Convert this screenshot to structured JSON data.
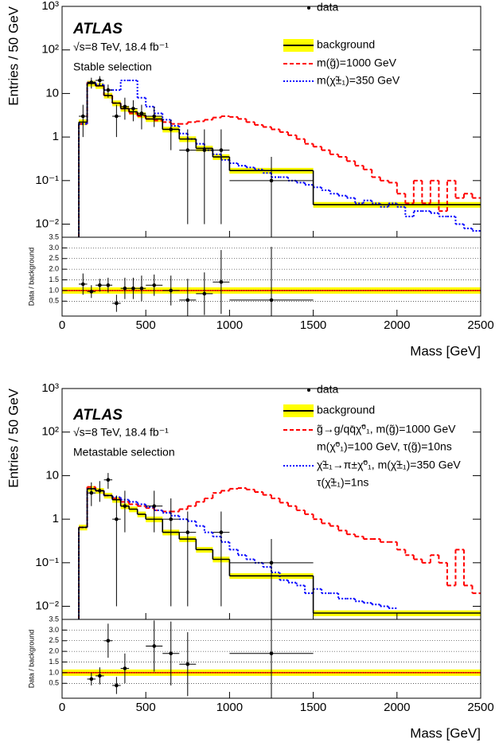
{
  "chart_data": [
    {
      "type": "histogram",
      "experiment": "ATLAS",
      "energy_label": "√s=8 TeV, 18.4 fb⁻¹",
      "selection": "Stable selection",
      "ylabel": "Entries / 50 GeV",
      "ratio_ylabel": "Data / background",
      "xlabel": "Mass [GeV]",
      "xlim": [
        0,
        2500
      ],
      "xticks": [
        0,
        500,
        1000,
        1500,
        2000,
        2500
      ],
      "ylim": [
        0.005,
        1000
      ],
      "log_y": true,
      "yticks": [
        {
          "value": 0.01,
          "label": "10⁻²"
        },
        {
          "value": 0.1,
          "label": "10⁻¹"
        },
        1,
        10,
        {
          "value": 100,
          "label": "10²"
        },
        {
          "value": 1000,
          "label": "10³"
        }
      ],
      "ratio_ylim": [
        -0.2,
        3.5
      ],
      "ratio_yticks": [
        0.5,
        {
          "value": 1,
          "label": "1.0"
        },
        1.5,
        {
          "value": 2,
          "label": "2.0"
        },
        2.5,
        {
          "value": 3,
          "label": "3.0"
        },
        3.5
      ],
      "ratio_grid": true,
      "data": {
        "name": "data",
        "color": "#000000",
        "x": [
          125,
          175,
          225,
          275,
          325,
          375,
          425,
          475,
          550,
          650,
          750,
          850,
          950,
          1250
        ],
        "xerr": [
          25,
          25,
          25,
          25,
          25,
          25,
          25,
          25,
          50,
          50,
          50,
          50,
          50,
          250
        ],
        "values": [
          3,
          18,
          20,
          12,
          3,
          5,
          4.5,
          3.5,
          3,
          1.5,
          0.5,
          0.5,
          0.5,
          0.1
        ],
        "err_low": [
          2,
          5,
          5,
          4,
          2,
          2.5,
          2.2,
          2,
          1.3,
          1,
          0.49,
          0.49,
          0.49,
          0.099
        ],
        "err_high": [
          2.5,
          5,
          5,
          4,
          2.5,
          3,
          2.5,
          2,
          2,
          1,
          1,
          1,
          1,
          0.25
        ]
      },
      "background": {
        "name": "background",
        "color": "#000000",
        "band_color": "#ffff00",
        "band_rel": 0.15,
        "bins": [
          100,
          150,
          200,
          250,
          300,
          350,
          400,
          450,
          500,
          600,
          700,
          800,
          900,
          1000,
          1500,
          2500
        ],
        "values": [
          2.2,
          17,
          15,
          9,
          6,
          4.5,
          3.8,
          3.2,
          2.6,
          1.5,
          0.9,
          0.55,
          0.35,
          0.17,
          0.028
        ]
      },
      "series": [
        {
          "name": "m(g̃)=1000 GeV",
          "color": "#ff0000",
          "dash": "5,3",
          "x_start": 100,
          "bin_width": 50,
          "values": [
            2,
            18,
            15,
            9,
            6,
            4.5,
            3.5,
            3,
            2.6,
            2.4,
            2.2,
            2,
            2,
            2.2,
            2.3,
            2.5,
            2.8,
            3,
            2.9,
            2.6,
            2.2,
            1.9,
            1.7,
            1.5,
            1.3,
            1.1,
            0.9,
            0.7,
            0.6,
            0.5,
            0.4,
            0.35,
            0.28,
            0.22,
            0.18,
            0.12,
            0.1,
            0.09,
            0.05,
            0.03,
            0.1,
            0.03,
            0.1,
            0.02,
            0.1,
            0.04,
            0.05,
            0.04
          ]
        },
        {
          "name": "m(χ̃±₁)=350 GeV",
          "color": "#0000ff",
          "dash": "2,2",
          "x_start": 100,
          "bin_width": 50,
          "values": [
            2,
            18,
            16,
            12,
            12,
            20,
            20,
            8,
            5,
            3.5,
            2.5,
            1.8,
            1.2,
            0.9,
            0.7,
            0.5,
            0.4,
            0.3,
            0.25,
            0.22,
            0.2,
            0.18,
            0.15,
            0.12,
            0.12,
            0.1,
            0.09,
            0.08,
            0.07,
            0.06,
            0.05,
            0.045,
            0.04,
            0.03,
            0.035,
            0.03,
            0.025,
            0.03,
            0.025,
            0.015,
            0.02,
            0.02,
            0.018,
            0.015,
            0.015,
            0.01,
            0.008,
            0.007
          ]
        }
      ],
      "ratio": {
        "x": [
          125,
          175,
          225,
          275,
          325,
          375,
          425,
          475,
          550,
          650,
          750,
          850,
          950,
          1250
        ],
        "xerr": [
          25,
          25,
          25,
          25,
          25,
          25,
          25,
          25,
          50,
          50,
          50,
          50,
          50,
          250
        ],
        "values": [
          1.3,
          0.95,
          1.25,
          1.25,
          0.4,
          1.1,
          1.1,
          1.1,
          1.25,
          1.0,
          0.55,
          0.85,
          1.4,
          0.55
        ],
        "err": [
          0.5,
          0.3,
          0.3,
          0.35,
          0.4,
          0.5,
          0.5,
          0.6,
          0.5,
          0.7,
          1.0,
          1.0,
          1.5,
          2.5
        ],
        "reference": 1,
        "reference_color": "#ff0000"
      }
    },
    {
      "type": "histogram",
      "experiment": "ATLAS",
      "energy_label": "√s=8 TeV, 18.4 fb⁻¹",
      "selection": "Metastable selection",
      "ylabel": "Entries / 50 GeV",
      "ratio_ylabel": "Data / background",
      "xlabel": "Mass [GeV]",
      "xlim": [
        0,
        2500
      ],
      "xticks": [
        0,
        500,
        1000,
        1500,
        2000,
        2500
      ],
      "ylim": [
        0.005,
        1000
      ],
      "log_y": true,
      "yticks": [
        {
          "value": 0.01,
          "label": "10⁻²"
        },
        {
          "value": 0.1,
          "label": "10⁻¹"
        },
        1,
        10,
        {
          "value": 100,
          "label": "10²"
        },
        {
          "value": 1000,
          "label": "10³"
        }
      ],
      "ratio_ylim": [
        -0.2,
        3.5
      ],
      "ratio_yticks": [
        0.5,
        {
          "value": 1,
          "label": "1.0"
        },
        1.5,
        {
          "value": 2,
          "label": "2.0"
        },
        2.5,
        {
          "value": 3,
          "label": "3.0"
        },
        3.5
      ],
      "ratio_grid": true,
      "data": {
        "name": "data",
        "color": "#000000",
        "x": [
          175,
          225,
          275,
          325,
          375,
          550,
          650,
          750,
          950,
          1250
        ],
        "xerr": [
          25,
          25,
          25,
          25,
          25,
          50,
          50,
          50,
          50,
          250
        ],
        "values": [
          4,
          4.5,
          8,
          1,
          2,
          2,
          1,
          0.5,
          0.5,
          0.1
        ],
        "err_low": [
          2,
          2,
          3,
          0.99,
          1.5,
          1.5,
          0.99,
          0.49,
          0.49,
          0.099
        ],
        "err_high": [
          3,
          3,
          3.5,
          2.5,
          2.5,
          2.5,
          2,
          1,
          1,
          0.25
        ]
      },
      "background": {
        "name": "background",
        "color": "#000000",
        "band_color": "#ffff00",
        "band_rel": 0.15,
        "bins": [
          100,
          150,
          200,
          250,
          300,
          350,
          400,
          450,
          500,
          600,
          700,
          800,
          900,
          1000,
          1500,
          2500
        ],
        "values": [
          0.65,
          5,
          4.5,
          3.5,
          2.8,
          2,
          1.7,
          1.3,
          1,
          0.5,
          0.35,
          0.2,
          0.12,
          0.05,
          0.007
        ]
      },
      "series": [
        {
          "name": [
            "g̃→g/qq̄χ̃⁰₁, m(g̃)=1000 GeV",
            "m(χ̃⁰₁)=100 GeV, τ(g̃)=10ns"
          ],
          "color": "#ff0000",
          "dash": "5,3",
          "x_start": 100,
          "bin_width": 50,
          "values": [
            0.65,
            5.5,
            4.5,
            3.5,
            3,
            2.5,
            2.2,
            2,
            1.8,
            1.6,
            1.5,
            1.5,
            1.7,
            2,
            2.5,
            3,
            4,
            4.5,
            5,
            5.2,
            4.8,
            4.2,
            3.6,
            3,
            2.4,
            2,
            1.6,
            1.3,
            1,
            0.8,
            0.7,
            0.55,
            0.45,
            0.4,
            0.35,
            0.35,
            0.3,
            0.3,
            0.2,
            0.15,
            0.12,
            0.1,
            0.15,
            0.1,
            0.03,
            0.2,
            0.03,
            0.02
          ]
        },
        {
          "name": [
            "χ̃±₁→π±χ̃⁰₁, m(χ̃±₁)=350 GeV",
            "τ(χ̃±₁)=1ns"
          ],
          "color": "#0000ff",
          "dash": "2,2",
          "x_start": 100,
          "bin_width": 50,
          "values": [
            0.65,
            5,
            4.5,
            3.5,
            3.2,
            2.8,
            2.5,
            2.2,
            1.9,
            1.6,
            1.4,
            1.2,
            1,
            0.9,
            0.7,
            0.5,
            0.4,
            0.3,
            0.2,
            0.15,
            0.12,
            0.1,
            0.08,
            0.06,
            0.04,
            0.035,
            0.03,
            0.02,
            0.025,
            0.02,
            0.02,
            0.015,
            0.015,
            0.013,
            0.012,
            0.011,
            0.01,
            0.009,
            null,
            null,
            null,
            null,
            null,
            null,
            null,
            null,
            null,
            null
          ]
        }
      ],
      "ratio": {
        "x": [
          175,
          225,
          275,
          325,
          375,
          550,
          650,
          750,
          1250
        ],
        "xerr": [
          25,
          25,
          25,
          25,
          25,
          50,
          50,
          50,
          250
        ],
        "values": [
          0.7,
          0.85,
          2.5,
          0.4,
          1.2,
          2.25,
          1.9,
          1.4,
          1.9
        ],
        "err": [
          0.3,
          0.4,
          0.8,
          0.4,
          0.7,
          1.2,
          1.5,
          1.5,
          2.5
        ],
        "reference": 1,
        "reference_color": "#ff0000"
      }
    }
  ]
}
